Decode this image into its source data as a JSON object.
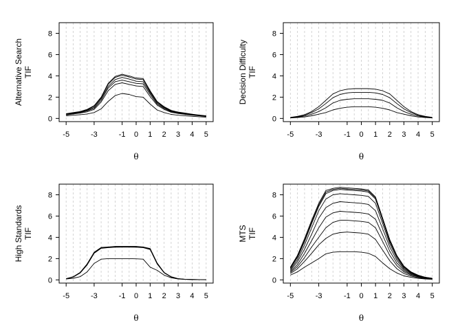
{
  "chart_data": [
    {
      "type": "line",
      "ylabel_line1": "Alternative Search",
      "ylabel_line2": "TIF",
      "xlabel": "θ",
      "xlim": [
        -5.5,
        5.5
      ],
      "ylim": [
        -0.3,
        9.0
      ],
      "xticks": [
        -5,
        -3,
        -1,
        0,
        1,
        2,
        3,
        4,
        5
      ],
      "yticks": [
        0,
        2,
        4,
        6,
        8
      ],
      "grid_x": [
        -5,
        -4.5,
        -4,
        -3.5,
        -3,
        -2.5,
        -2,
        -1.5,
        -1,
        -0.5,
        0,
        0.5,
        1,
        1.5,
        2,
        2.5,
        3,
        3.5,
        4,
        4.5,
        5
      ],
      "x": [
        -5,
        -4.5,
        -4,
        -3.5,
        -3,
        -2.5,
        -2,
        -1.5,
        -1,
        -0.5,
        0,
        0.5,
        1,
        1.5,
        2,
        2.5,
        3,
        3.5,
        4,
        4.5,
        5
      ],
      "series": [
        {
          "values": [
            0.45,
            0.55,
            0.65,
            0.85,
            1.2,
            2.0,
            3.3,
            3.95,
            4.15,
            4.0,
            3.8,
            3.75,
            2.6,
            1.6,
            1.1,
            0.75,
            0.6,
            0.5,
            0.4,
            0.32,
            0.25
          ]
        },
        {
          "values": [
            0.42,
            0.52,
            0.62,
            0.8,
            1.15,
            1.95,
            3.2,
            3.85,
            4.05,
            3.9,
            3.7,
            3.65,
            2.5,
            1.55,
            1.05,
            0.72,
            0.57,
            0.47,
            0.38,
            0.3,
            0.23
          ]
        },
        {
          "values": [
            0.4,
            0.5,
            0.58,
            0.75,
            1.05,
            1.85,
            3.0,
            3.65,
            3.85,
            3.7,
            3.5,
            3.45,
            2.4,
            1.45,
            1.0,
            0.68,
            0.54,
            0.44,
            0.35,
            0.28,
            0.21
          ]
        },
        {
          "values": [
            0.37,
            0.46,
            0.54,
            0.7,
            0.95,
            1.7,
            2.85,
            3.45,
            3.6,
            3.45,
            3.3,
            3.25,
            2.25,
            1.35,
            0.93,
            0.63,
            0.5,
            0.41,
            0.33,
            0.26,
            0.2
          ]
        },
        {
          "values": [
            0.33,
            0.42,
            0.5,
            0.62,
            0.85,
            1.55,
            2.6,
            3.2,
            3.35,
            3.2,
            3.05,
            3.0,
            2.05,
            1.25,
            0.85,
            0.58,
            0.46,
            0.38,
            0.3,
            0.24,
            0.18
          ]
        },
        {
          "values": [
            0.25,
            0.3,
            0.35,
            0.42,
            0.55,
            0.9,
            1.6,
            2.15,
            2.35,
            2.25,
            2.05,
            2.0,
            1.35,
            0.8,
            0.55,
            0.38,
            0.3,
            0.24,
            0.2,
            0.16,
            0.12
          ]
        }
      ]
    },
    {
      "type": "line",
      "ylabel_line1": "Decision Difficulty",
      "ylabel_line2": "TIF",
      "xlabel": "θ",
      "xlim": [
        -5.5,
        5.5
      ],
      "ylim": [
        -0.3,
        9.0
      ],
      "xticks": [
        -5,
        -3,
        -1,
        0,
        1,
        2,
        3,
        4,
        5
      ],
      "yticks": [
        0,
        2,
        4,
        6,
        8
      ],
      "grid_x": [
        -5,
        -4.5,
        -4,
        -3.5,
        -3,
        -2.5,
        -2,
        -1.5,
        -1,
        -0.5,
        0,
        0.5,
        1,
        1.5,
        2,
        2.5,
        3,
        3.5,
        4,
        4.5,
        5
      ],
      "x": [
        -5,
        -4.5,
        -4,
        -3.5,
        -3,
        -2.5,
        -2,
        -1.5,
        -1,
        -0.5,
        0,
        0.5,
        1,
        1.5,
        2,
        2.5,
        3,
        3.5,
        4,
        4.5,
        5
      ],
      "series": [
        {
          "values": [
            0.1,
            0.2,
            0.35,
            0.65,
            1.1,
            1.7,
            2.3,
            2.6,
            2.75,
            2.8,
            2.8,
            2.8,
            2.75,
            2.6,
            2.3,
            1.7,
            1.1,
            0.65,
            0.35,
            0.2,
            0.1
          ]
        },
        {
          "values": [
            0.08,
            0.16,
            0.3,
            0.55,
            0.9,
            1.4,
            1.95,
            2.25,
            2.4,
            2.45,
            2.45,
            2.45,
            2.4,
            2.25,
            1.95,
            1.4,
            0.9,
            0.55,
            0.3,
            0.16,
            0.08
          ]
        },
        {
          "values": [
            0.06,
            0.12,
            0.22,
            0.4,
            0.65,
            1.0,
            1.45,
            1.7,
            1.8,
            1.85,
            1.85,
            1.85,
            1.8,
            1.7,
            1.45,
            1.0,
            0.65,
            0.4,
            0.22,
            0.12,
            0.06
          ]
        },
        {
          "values": [
            0.04,
            0.08,
            0.14,
            0.25,
            0.4,
            0.55,
            0.8,
            0.95,
            1.05,
            1.1,
            1.1,
            1.1,
            1.05,
            0.95,
            0.8,
            0.55,
            0.4,
            0.25,
            0.14,
            0.08,
            0.04
          ]
        }
      ]
    },
    {
      "type": "line",
      "ylabel_line1": "High Standards",
      "ylabel_line2": "TIF",
      "xlabel": "θ",
      "xlim": [
        -5.5,
        5.5
      ],
      "ylim": [
        -0.3,
        9.0
      ],
      "xticks": [
        -5,
        -3,
        -1,
        0,
        1,
        2,
        3,
        4,
        5
      ],
      "yticks": [
        0,
        2,
        4,
        6,
        8
      ],
      "grid_x": [
        -5,
        -4.5,
        -4,
        -3.5,
        -3,
        -2.5,
        -2,
        -1.5,
        -1,
        -0.5,
        0,
        0.5,
        1,
        1.5,
        2,
        2.5,
        3,
        3.5,
        4,
        4.5,
        5
      ],
      "x": [
        -5,
        -4.5,
        -4,
        -3.5,
        -3,
        -2.5,
        -2,
        -1.5,
        -1,
        -0.5,
        0,
        0.5,
        1,
        1.5,
        2,
        2.5,
        3,
        3.5,
        4,
        4.5,
        5
      ],
      "series": [
        {
          "values": [
            0.12,
            0.3,
            0.7,
            1.5,
            2.6,
            3.05,
            3.1,
            3.15,
            3.15,
            3.15,
            3.15,
            3.1,
            2.95,
            1.6,
            0.7,
            0.3,
            0.12,
            0.06,
            0.04,
            0.03,
            0.02
          ]
        },
        {
          "values": [
            0.11,
            0.28,
            0.67,
            1.45,
            2.55,
            3.0,
            3.07,
            3.1,
            3.12,
            3.12,
            3.1,
            3.07,
            2.9,
            1.55,
            0.68,
            0.28,
            0.11,
            0.05,
            0.04,
            0.03,
            0.02
          ]
        },
        {
          "values": [
            0.1,
            0.26,
            0.64,
            1.4,
            2.5,
            2.97,
            3.03,
            3.07,
            3.08,
            3.08,
            3.07,
            3.03,
            2.85,
            1.5,
            0.66,
            0.26,
            0.1,
            0.05,
            0.03,
            0.02,
            0.02
          ]
        },
        {
          "values": [
            0.08,
            0.15,
            0.3,
            0.75,
            1.55,
            1.95,
            2.0,
            2.0,
            2.0,
            2.0,
            1.98,
            1.95,
            1.2,
            0.9,
            0.45,
            0.2,
            0.09,
            0.05,
            0.03,
            0.02,
            0.01
          ]
        }
      ]
    },
    {
      "type": "line",
      "ylabel_line1": "MTS",
      "ylabel_line2": "TIF",
      "xlabel": "θ",
      "xlim": [
        -5.5,
        5.5
      ],
      "ylim": [
        -0.3,
        9.0
      ],
      "xticks": [
        -5,
        -3,
        -1,
        0,
        1,
        2,
        3,
        4,
        5
      ],
      "yticks": [
        0,
        2,
        4,
        6,
        8
      ],
      "grid_x": [
        -5,
        -4.5,
        -4,
        -3.5,
        -3,
        -2.5,
        -2,
        -1.5,
        -1,
        -0.5,
        0,
        0.5,
        1,
        1.5,
        2,
        2.5,
        3,
        3.5,
        4,
        4.5,
        5
      ],
      "x": [
        -5,
        -4.5,
        -4,
        -3.5,
        -3,
        -2.5,
        -2,
        -1.5,
        -1,
        -0.5,
        0,
        0.5,
        1,
        1.5,
        2,
        2.5,
        3,
        3.5,
        4,
        4.5,
        5
      ],
      "series": [
        {
          "values": [
            1.2,
            2.3,
            3.9,
            5.6,
            7.2,
            8.4,
            8.6,
            8.7,
            8.65,
            8.6,
            8.55,
            8.45,
            7.8,
            5.8,
            3.8,
            2.3,
            1.3,
            0.75,
            0.45,
            0.25,
            0.15
          ]
        },
        {
          "values": [
            1.15,
            2.2,
            3.75,
            5.45,
            7.05,
            8.25,
            8.5,
            8.6,
            8.55,
            8.5,
            8.45,
            8.35,
            7.7,
            5.7,
            3.7,
            2.25,
            1.25,
            0.72,
            0.43,
            0.24,
            0.14
          ]
        },
        {
          "values": [
            1.1,
            2.1,
            3.6,
            5.3,
            6.9,
            8.1,
            8.4,
            8.5,
            8.45,
            8.4,
            8.35,
            8.25,
            7.6,
            5.6,
            3.6,
            2.2,
            1.2,
            0.7,
            0.42,
            0.23,
            0.13
          ]
        },
        {
          "values": [
            1.0,
            1.9,
            3.3,
            4.9,
            6.5,
            7.6,
            8.0,
            8.1,
            8.05,
            8.0,
            7.95,
            7.85,
            7.2,
            5.3,
            3.4,
            2.05,
            1.1,
            0.65,
            0.39,
            0.21,
            0.12
          ]
        },
        {
          "values": [
            0.9,
            1.7,
            2.9,
            4.3,
            5.8,
            6.8,
            7.2,
            7.35,
            7.3,
            7.25,
            7.2,
            7.1,
            6.5,
            4.8,
            3.1,
            1.85,
            1.0,
            0.6,
            0.36,
            0.2,
            0.11
          ]
        },
        {
          "values": [
            0.8,
            1.45,
            2.5,
            3.7,
            4.9,
            5.9,
            6.3,
            6.45,
            6.4,
            6.35,
            6.3,
            6.2,
            5.7,
            4.2,
            2.7,
            1.6,
            0.88,
            0.52,
            0.32,
            0.18,
            0.1
          ]
        },
        {
          "values": [
            0.7,
            1.25,
            2.1,
            3.1,
            4.0,
            4.9,
            5.4,
            5.6,
            5.6,
            5.55,
            5.5,
            5.4,
            4.9,
            3.6,
            2.3,
            1.35,
            0.75,
            0.45,
            0.28,
            0.16,
            0.09
          ]
        },
        {
          "values": [
            0.6,
            1.05,
            1.75,
            2.5,
            3.3,
            3.9,
            4.3,
            4.45,
            4.5,
            4.45,
            4.4,
            4.3,
            3.8,
            2.8,
            1.8,
            1.05,
            0.6,
            0.36,
            0.22,
            0.13,
            0.08
          ]
        },
        {
          "values": [
            0.45,
            0.75,
            1.2,
            1.6,
            2.0,
            2.45,
            2.6,
            2.65,
            2.65,
            2.65,
            2.6,
            2.5,
            2.2,
            1.6,
            1.05,
            0.65,
            0.38,
            0.24,
            0.15,
            0.09,
            0.05
          ]
        }
      ]
    }
  ]
}
